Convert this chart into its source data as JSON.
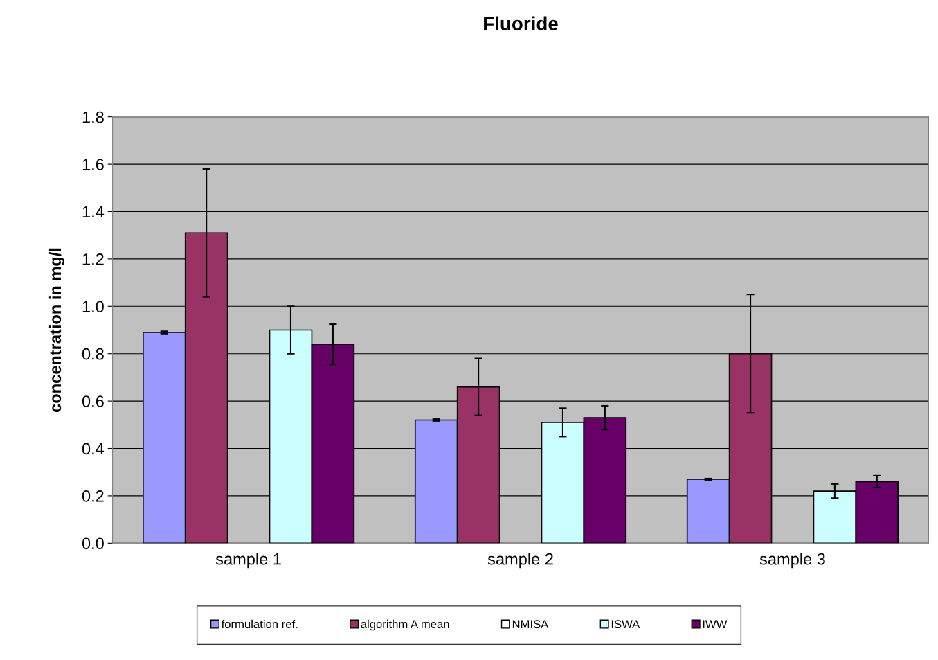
{
  "chart_data": {
    "type": "bar",
    "title": "Fluoride",
    "ylabel": "concentration in mg/l",
    "categories": [
      "sample 1",
      "sample 2",
      "sample 3"
    ],
    "series": [
      {
        "name": "formulation ref.",
        "color": "#9999ff",
        "values": [
          0.89,
          0.52,
          0.27
        ],
        "errors": [
          0.005,
          0.004,
          0.003
        ]
      },
      {
        "name": "algorithm A mean",
        "color": "#993366",
        "values": [
          1.31,
          0.66,
          0.8
        ],
        "errors": [
          0.27,
          0.12,
          0.25
        ]
      },
      {
        "name": "NMISA",
        "color": "#ffffff",
        "values": [
          null,
          null,
          null
        ],
        "errors": [
          null,
          null,
          null
        ]
      },
      {
        "name": "ISWA",
        "color": "#ccffff",
        "values": [
          0.9,
          0.51,
          0.22
        ],
        "errors": [
          0.1,
          0.06,
          0.03
        ]
      },
      {
        "name": "IWW",
        "color": "#660066",
        "values": [
          0.84,
          0.53,
          0.26
        ],
        "errors": [
          0.085,
          0.05,
          0.025
        ]
      }
    ],
    "ylim": [
      0,
      1.8
    ],
    "yticks": [
      {
        "value": 0,
        "label": "0.0"
      },
      {
        "value": 0.2,
        "label": "0.2"
      },
      {
        "value": 0.4,
        "label": "0.4"
      },
      {
        "value": 0.6,
        "label": "0.6"
      },
      {
        "value": 0.8,
        "label": "0.8"
      },
      {
        "value": 1.0,
        "label": "1.0"
      },
      {
        "value": 1.2,
        "label": "1.2"
      },
      {
        "value": 1.4,
        "label": "1.4"
      },
      {
        "value": 1.6,
        "label": "1.6"
      },
      {
        "value": 1.8,
        "label": "1.8"
      }
    ],
    "grid": "y",
    "legend": "bottom"
  }
}
